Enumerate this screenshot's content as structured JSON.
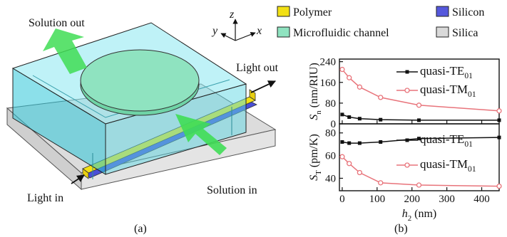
{
  "diagram": {
    "caption": "(a)",
    "labels": {
      "solution_out": "Solution out",
      "light_out": "Light out",
      "light_in": "Light in",
      "solution_in": "Solution in"
    },
    "axes": {
      "x": "x",
      "y": "y",
      "z": "z"
    },
    "legend": [
      {
        "label": "Polymer",
        "color": "#f2e014"
      },
      {
        "label": "Microfluidic channel",
        "color": "#8fe3c0"
      },
      {
        "label": "Silicon",
        "color": "#5558dc"
      },
      {
        "label": "Silica",
        "color": "#d9d9d9"
      }
    ]
  },
  "chart_data": [
    {
      "type": "line",
      "caption": "(b)",
      "ylabel_main": "S",
      "ylabel_sub": "n",
      "ylabel_unit": " (nm/RIU)",
      "yticks": [
        0,
        80,
        160,
        240
      ],
      "ylim": [
        0,
        250
      ],
      "xlim": [
        -8,
        450
      ],
      "legend_loc": "top-right",
      "series": [
        {
          "name": "quasi-TE",
          "name_sub": "01",
          "color": "#111111",
          "marker": "filled-square",
          "x": [
            0,
            20,
            50,
            110,
            220,
            450
          ],
          "y": [
            36,
            26,
            20,
            16,
            14,
            14
          ]
        },
        {
          "name": "quasi-TM",
          "name_sub": "01",
          "color": "#e8747b",
          "marker": "open-circle",
          "x": [
            0,
            20,
            50,
            110,
            220,
            450
          ],
          "y": [
            210,
            178,
            142,
            102,
            72,
            50
          ]
        }
      ]
    },
    {
      "type": "line",
      "ylabel_main": "S",
      "ylabel_sub": "T",
      "ylabel_unit": " (pm/K)",
      "yticks": [
        40,
        60,
        80
      ],
      "ylim": [
        29,
        88
      ],
      "xlim": [
        -8,
        450
      ],
      "xticks": [
        0,
        100,
        200,
        300,
        400
      ],
      "xlabel_main": "h",
      "xlabel_sub": "2",
      "xlabel_unit": " (nm)",
      "legend_loc": "center-right",
      "series": [
        {
          "name": "quasi-TE",
          "name_sub": "01",
          "color": "#111111",
          "marker": "filled-square",
          "x": [
            0,
            20,
            50,
            110,
            220,
            450
          ],
          "y": [
            72,
            71,
            71,
            72,
            75,
            76
          ]
        },
        {
          "name": "quasi-TM",
          "name_sub": "01",
          "color": "#e8747b",
          "marker": "open-circle",
          "x": [
            0,
            20,
            50,
            110,
            220,
            450
          ],
          "y": [
            59,
            53,
            45,
            36,
            34,
            33
          ]
        }
      ]
    }
  ]
}
